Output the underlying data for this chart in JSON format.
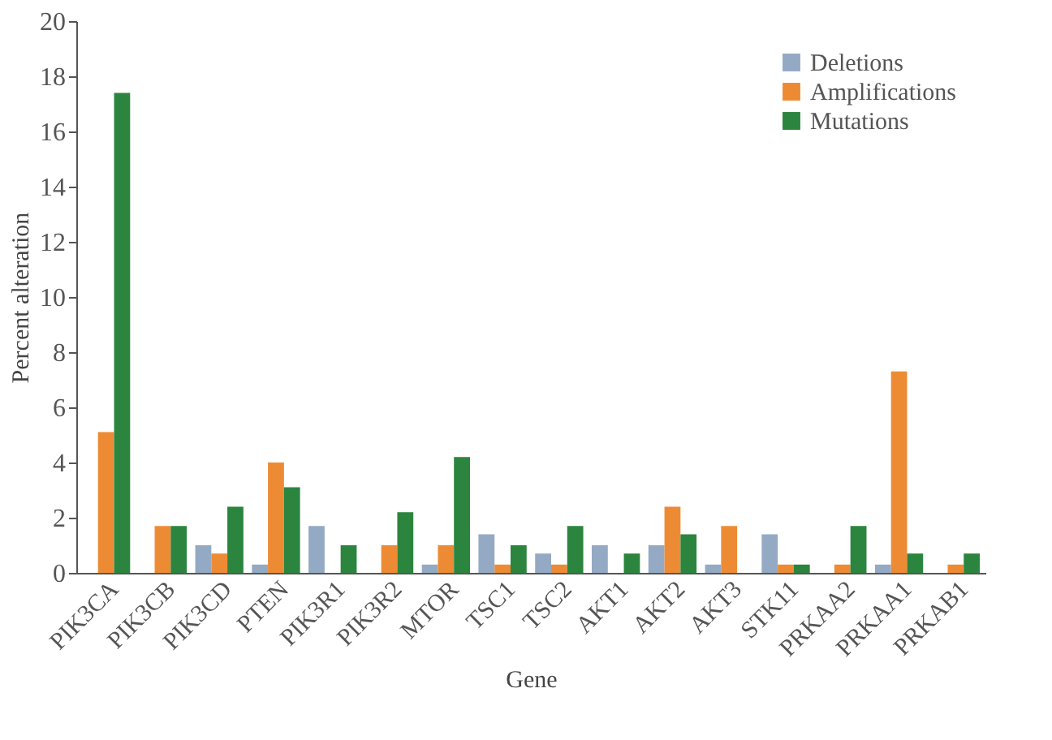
{
  "chart_data": {
    "type": "bar",
    "xlabel": "Gene",
    "ylabel": "Percent alteration",
    "categories": [
      "PIK3CA",
      "PIK3CB",
      "PIK3CD",
      "PTEN",
      "PIK3R1",
      "PIK3R2",
      "MTOR",
      "TSC1",
      "TSC2",
      "AKT1",
      "AKT2",
      "AKT3",
      "STK11",
      "PRKAA2",
      "PRKAA1",
      "PRKAB1"
    ],
    "series": [
      {
        "name": "Deletions",
        "color": "#94a9c3",
        "values": [
          0,
          0,
          1.0,
          0.3,
          1.7,
          0,
          0.3,
          1.4,
          0.7,
          1.0,
          1.0,
          0.3,
          1.4,
          0,
          0.3,
          0
        ]
      },
      {
        "name": "Amplifications",
        "color": "#ed8b35",
        "values": [
          5.1,
          1.7,
          0.7,
          4.0,
          0,
          1.0,
          1.0,
          0.3,
          0.3,
          0,
          2.4,
          1.7,
          0.3,
          0.3,
          7.3,
          0.3
        ]
      },
      {
        "name": "Mutations",
        "color": "#2b853e",
        "values": [
          17.4,
          1.7,
          2.4,
          3.1,
          1.0,
          2.2,
          4.2,
          1.0,
          1.7,
          0.7,
          1.4,
          0,
          0.3,
          1.7,
          0.7,
          0.7
        ]
      }
    ],
    "ylim": [
      0,
      20
    ],
    "yticks": [
      0,
      2,
      4,
      6,
      8,
      10,
      12,
      14,
      16,
      18,
      20
    ],
    "grid": false,
    "legend": "top right"
  }
}
